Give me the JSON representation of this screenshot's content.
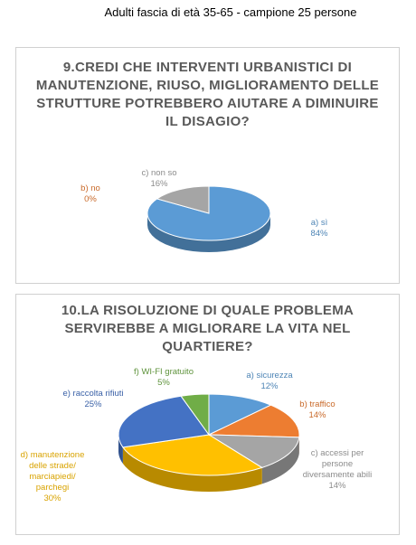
{
  "header": "Adulti fascia di età 35-65 - campione 25 persone",
  "chart_data": [
    {
      "type": "pie3d",
      "title": "9.CREDI CHE INTERVENTI URBANISTICI DI MANUTENZIONE, RIUSO, MIGLIORAMENTO DELLE STRUTTURE POTREBBERO AIUTARE A DIMINUIRE IL DISAGIO?",
      "categories": [
        "a) sì",
        "b) no",
        "c) non so"
      ],
      "values": [
        84,
        0,
        16
      ],
      "value_labels": [
        "84%",
        "0%",
        "16%"
      ],
      "colors": [
        "#5b9bd5",
        "#ed7d31",
        "#a5a5a5"
      ]
    },
    {
      "type": "pie3d",
      "title": "10.LA RISOLUZIONE DI QUALE PROBLEMA SERVIREBBE A MIGLIORARE LA VITA NEL QUARTIERE?",
      "categories": [
        "a) sicurezza",
        "b) traffico",
        "c) accessi per persone diversamente abili",
        "d) manutenzione delle strade/ marciapiedi/ parchegi",
        "e) raccolta rifiuti",
        "f) WI-FI gratuito"
      ],
      "values": [
        12,
        14,
        14,
        30,
        25,
        5
      ],
      "value_labels": [
        "12%",
        "14%",
        "14%",
        "30%",
        "25%",
        "5%"
      ],
      "colors": [
        "#5b9bd5",
        "#ed7d31",
        "#a5a5a5",
        "#ffc000",
        "#4472c4",
        "#70ad47"
      ]
    }
  ]
}
